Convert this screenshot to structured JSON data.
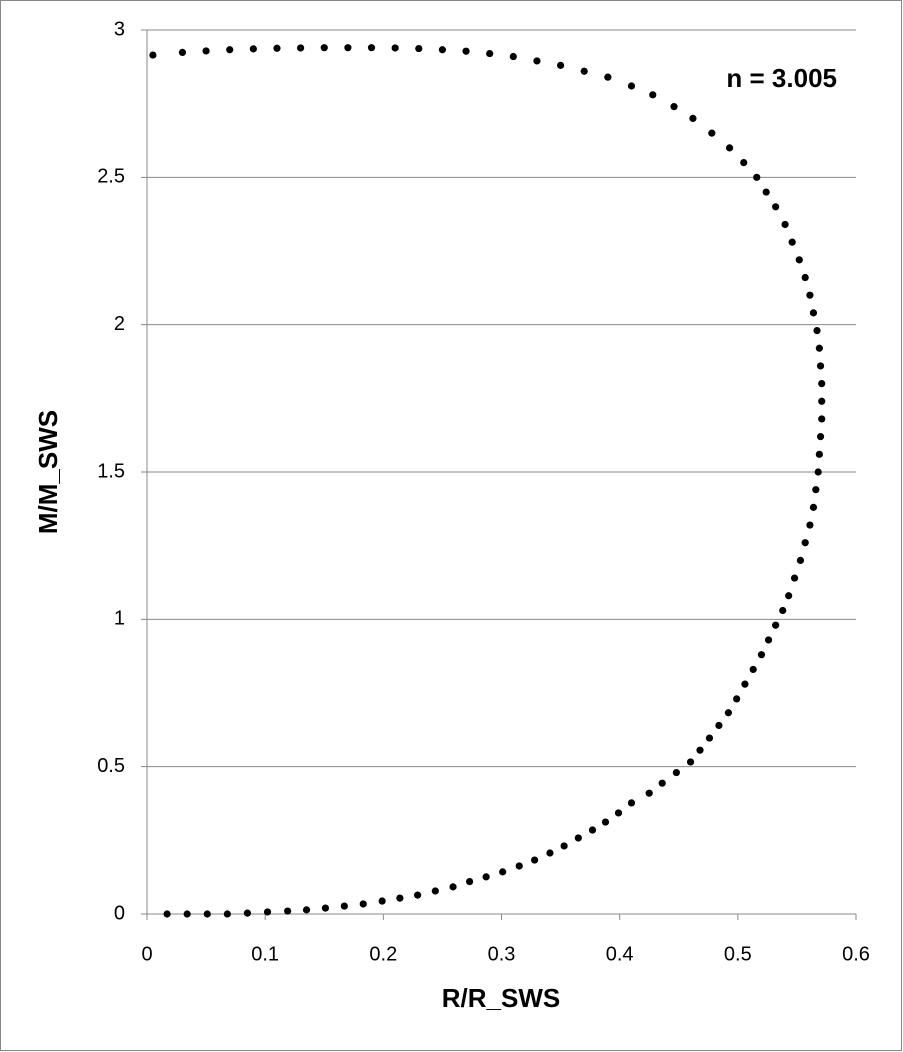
{
  "chart_data": {
    "type": "scatter",
    "xlabel": "R/R_SWS",
    "ylabel": "M/M_SWS",
    "annotation": "n = 3.005",
    "xlim": [
      0,
      0.6
    ],
    "xticks": [
      0,
      0.1,
      0.2,
      0.3,
      0.4,
      0.5,
      0.6
    ],
    "ylim": [
      0,
      3
    ],
    "yticks": [
      0,
      0.5,
      1,
      1.5,
      2,
      2.5,
      3
    ],
    "grid": true,
    "series": [
      {
        "color": "#000000",
        "x": [
          0.017,
          0.034,
          0.051,
          0.068,
          0.085,
          0.102,
          0.119,
          0.135,
          0.151,
          0.167,
          0.183,
          0.199,
          0.214,
          0.229,
          0.244,
          0.259,
          0.273,
          0.287,
          0.301,
          0.315,
          0.328,
          0.341,
          0.353,
          0.365,
          0.377,
          0.388,
          0.399,
          0.41,
          0.425,
          0.436,
          0.448,
          0.46,
          0.468,
          0.476,
          0.484,
          0.492,
          0.499,
          0.506,
          0.513,
          0.52,
          0.526,
          0.532,
          0.538,
          0.543,
          0.548,
          0.553,
          0.557,
          0.561,
          0.564,
          0.566,
          0.568,
          0.569,
          0.57,
          0.571,
          0.571,
          0.571,
          0.57,
          0.569,
          0.567,
          0.564,
          0.561,
          0.557,
          0.552,
          0.546,
          0.54,
          0.532,
          0.524,
          0.516,
          0.505,
          0.493,
          0.478,
          0.462,
          0.446,
          0.428,
          0.41,
          0.39,
          0.37,
          0.35,
          0.33,
          0.31,
          0.29,
          0.27,
          0.25,
          0.23,
          0.21,
          0.19,
          0.17,
          0.15,
          0.13,
          0.11,
          0.09,
          0.07,
          0.05,
          0.03,
          0.005
        ],
        "y": [
          0,
          0,
          0,
          0,
          0.003,
          0.007,
          0.01,
          0.014,
          0.02,
          0.027,
          0.034,
          0.044,
          0.054,
          0.064,
          0.078,
          0.092,
          0.11,
          0.126,
          0.143,
          0.163,
          0.183,
          0.207,
          0.231,
          0.258,
          0.285,
          0.312,
          0.343,
          0.377,
          0.41,
          0.444,
          0.48,
          0.516,
          0.556,
          0.597,
          0.64,
          0.683,
          0.73,
          0.78,
          0.83,
          0.88,
          0.93,
          0.98,
          1.03,
          1.08,
          1.14,
          1.2,
          1.26,
          1.32,
          1.38,
          1.44,
          1.5,
          1.56,
          1.62,
          1.68,
          1.74,
          1.8,
          1.86,
          1.92,
          1.98,
          2.04,
          2.1,
          2.16,
          2.22,
          2.28,
          2.34,
          2.4,
          2.45,
          2.5,
          2.55,
          2.6,
          2.65,
          2.7,
          2.74,
          2.78,
          2.81,
          2.84,
          2.86,
          2.88,
          2.895,
          2.91,
          2.92,
          2.928,
          2.933,
          2.937,
          2.939,
          2.94,
          2.94,
          2.94,
          2.939,
          2.938,
          2.936,
          2.933,
          2.929,
          2.924,
          2.915
        ]
      }
    ]
  }
}
